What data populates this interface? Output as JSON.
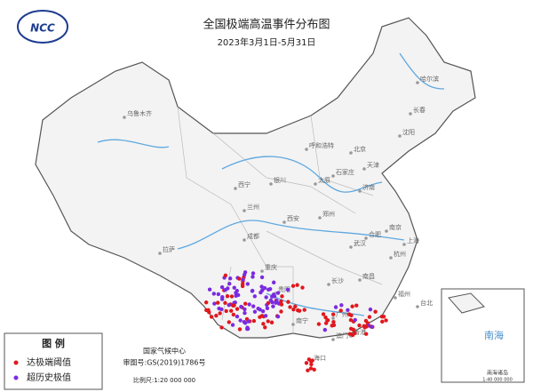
{
  "header": {
    "logo": "NCC",
    "title": "全国极端高温事件分布图",
    "subtitle": "2023年3月1日-5月31日"
  },
  "legend": {
    "title": "图 例",
    "items": [
      "达极端阈值",
      "超历史极值"
    ]
  },
  "credit": {
    "org": "国家气候中心",
    "approval": "审图号:GS(2019)1786号",
    "scale": "比例尺:1:20 000 000"
  },
  "inset": {
    "sea": "南海",
    "label": "南海诸岛",
    "scale": "1:40 000 000"
  },
  "cities": [
    "乌鲁木齐",
    "哈尔滨",
    "长春",
    "沈阳",
    "呼和浩特",
    "北京",
    "天津",
    "石家庄",
    "太原",
    "济南",
    "银川",
    "西宁",
    "兰州",
    "郑州",
    "西安",
    "南京",
    "合肥",
    "上海",
    "武汉",
    "杭州",
    "成都",
    "重庆",
    "拉萨",
    "长沙",
    "南昌",
    "福州",
    "贵阳",
    "台北",
    "广州",
    "南宁",
    "香港",
    "澳门",
    "海口"
  ]
}
